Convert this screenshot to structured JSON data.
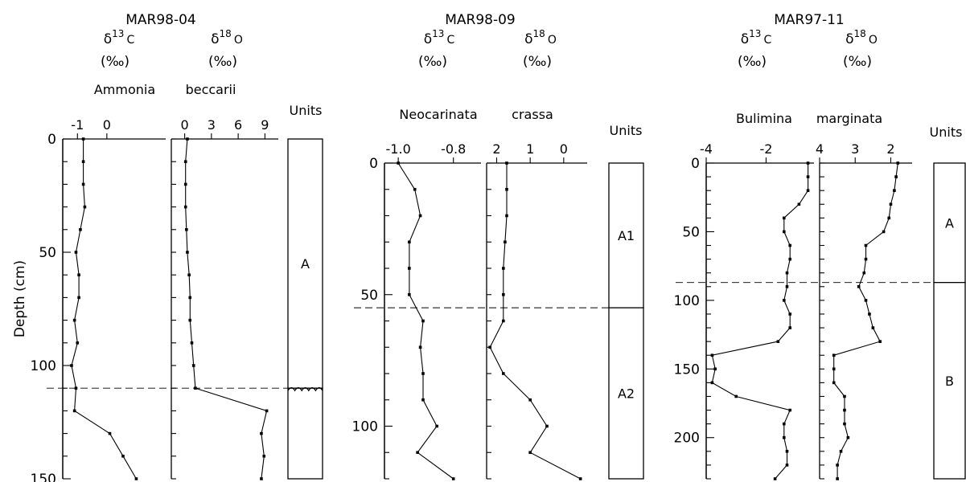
{
  "chart_data": [
    {
      "type": "line",
      "title": "MAR98-04",
      "ylabel": "Depth (cm)",
      "ylim": [
        0,
        150
      ],
      "yticks": [
        0,
        50,
        100,
        150
      ],
      "panels": [
        {
          "header_symbol": "δ",
          "header_sup": "13",
          "header_element": "C",
          "header_unit": "(‰)",
          "xlim": [
            -1.5,
            2.0
          ],
          "xticks": [
            -1,
            0
          ],
          "xtick_labels": [
            "-1",
            "0"
          ],
          "points": [
            [
              -0.8,
              0
            ],
            [
              -0.8,
              10
            ],
            [
              -0.8,
              20
            ],
            [
              -0.75,
              30
            ],
            [
              -0.9,
              40
            ],
            [
              -1.05,
              50
            ],
            [
              -0.95,
              60
            ],
            [
              -0.95,
              70
            ],
            [
              -1.1,
              80
            ],
            [
              -1.0,
              90
            ],
            [
              -1.2,
              100
            ],
            [
              -1.05,
              110
            ],
            [
              -1.1,
              120
            ],
            [
              0.1,
              130
            ],
            [
              0.55,
              140
            ],
            [
              1.0,
              150
            ]
          ]
        },
        {
          "header_symbol": "δ",
          "header_sup": "18",
          "header_element": "O",
          "header_unit": "(‰)",
          "xlim": [
            -1.5,
            10.5
          ],
          "xticks": [
            0,
            3,
            6,
            9
          ],
          "xtick_labels": [
            "0",
            "3",
            "6",
            "9"
          ],
          "points": [
            [
              0.3,
              0
            ],
            [
              0.1,
              10
            ],
            [
              0.1,
              20
            ],
            [
              0.1,
              30
            ],
            [
              0.2,
              40
            ],
            [
              0.3,
              50
            ],
            [
              0.5,
              60
            ],
            [
              0.6,
              70
            ],
            [
              0.6,
              80
            ],
            [
              0.8,
              90
            ],
            [
              1.0,
              100
            ],
            [
              1.2,
              110
            ],
            [
              9.2,
              120
            ],
            [
              8.6,
              130
            ],
            [
              8.9,
              140
            ],
            [
              8.6,
              150
            ]
          ]
        }
      ],
      "species": [
        "Ammonia",
        "beccarii"
      ],
      "units_label": "Units",
      "units": [
        {
          "label": "A",
          "from": 0,
          "to": 110,
          "pattern": "none"
        },
        {
          "label": "",
          "from": 110,
          "to": 150,
          "pattern": "hatched"
        }
      ],
      "boundary_depths": [
        110
      ]
    },
    {
      "type": "line",
      "title": "MAR98-09",
      "ylabel": "",
      "ylim": [
        0,
        120
      ],
      "yticks": [
        0,
        50,
        100
      ],
      "panels": [
        {
          "header_symbol": "δ",
          "header_sup": "13",
          "header_element": "C",
          "header_unit": "(‰)",
          "xlim": [
            -1.05,
            -0.7
          ],
          "xticks": [
            -1.0,
            -0.8
          ],
          "xtick_labels": [
            "-1.0",
            "-0.8"
          ],
          "points": [
            [
              -1.0,
              0
            ],
            [
              -0.94,
              10
            ],
            [
              -0.92,
              20
            ],
            [
              -0.96,
              30
            ],
            [
              -0.96,
              40
            ],
            [
              -0.96,
              50
            ],
            [
              -0.91,
              60
            ],
            [
              -0.92,
              70
            ],
            [
              -0.91,
              80
            ],
            [
              -0.91,
              90
            ],
            [
              -0.86,
              100
            ],
            [
              -0.93,
              110
            ],
            [
              -0.8,
              120
            ]
          ]
        },
        {
          "header_symbol": "δ",
          "header_sup": "18",
          "header_element": "O",
          "header_unit": "(‰)",
          "xlim": [
            2.3,
            -0.7
          ],
          "xticks": [
            2,
            1,
            0
          ],
          "xtick_labels": [
            "2",
            "1",
            "0"
          ],
          "points": [
            [
              1.7,
              0
            ],
            [
              1.7,
              10
            ],
            [
              1.7,
              20
            ],
            [
              1.75,
              30
            ],
            [
              1.8,
              40
            ],
            [
              1.8,
              50
            ],
            [
              1.8,
              60
            ],
            [
              2.2,
              70
            ],
            [
              1.8,
              80
            ],
            [
              1.0,
              90
            ],
            [
              0.5,
              100
            ],
            [
              1.0,
              110
            ],
            [
              -0.5,
              120
            ]
          ]
        }
      ],
      "species": [
        "Neocarinata",
        "crassa"
      ],
      "units_label": "Units",
      "units": [
        {
          "label": "A1",
          "from": 0,
          "to": 55,
          "pattern": "none"
        },
        {
          "label": "A2",
          "from": 55,
          "to": 120,
          "pattern": "none"
        }
      ],
      "boundary_depths": [
        55
      ]
    },
    {
      "type": "line",
      "title": "MAR97-11",
      "ylabel": "",
      "ylim": [
        0,
        230
      ],
      "yticks": [
        0,
        50,
        100,
        150,
        200
      ],
      "panels": [
        {
          "header_symbol": "δ",
          "header_sup": "13",
          "header_element": "C",
          "header_unit": "(‰)",
          "xlim": [
            -4.0,
            -0.4
          ],
          "xticks": [
            -4,
            -2
          ],
          "xtick_labels": [
            "-4",
            "-2"
          ],
          "points": [
            [
              -0.6,
              0
            ],
            [
              -0.6,
              10
            ],
            [
              -0.6,
              20
            ],
            [
              -0.9,
              30
            ],
            [
              -1.4,
              40
            ],
            [
              -1.4,
              50
            ],
            [
              -1.2,
              60
            ],
            [
              -1.2,
              70
            ],
            [
              -1.3,
              80
            ],
            [
              -1.3,
              90
            ],
            [
              -1.4,
              100
            ],
            [
              -1.2,
              110
            ],
            [
              -1.2,
              120
            ],
            [
              -1.6,
              130
            ],
            [
              -3.8,
              140
            ],
            [
              -3.7,
              150
            ],
            [
              -3.8,
              160
            ],
            [
              -3.0,
              170
            ],
            [
              -1.2,
              180
            ],
            [
              -1.4,
              190
            ],
            [
              -1.4,
              200
            ],
            [
              -1.3,
              210
            ],
            [
              -1.3,
              220
            ],
            [
              -1.7,
              230
            ]
          ]
        },
        {
          "header_symbol": "δ",
          "header_sup": "18",
          "header_element": "O",
          "header_unit": "(‰)",
          "xlim": [
            4.0,
            1.4
          ],
          "xticks": [
            4,
            3,
            2
          ],
          "xtick_labels": [
            "4",
            "3",
            "2"
          ],
          "points": [
            [
              1.8,
              0
            ],
            [
              1.85,
              10
            ],
            [
              1.9,
              20
            ],
            [
              2.0,
              30
            ],
            [
              2.05,
              40
            ],
            [
              2.2,
              50
            ],
            [
              2.7,
              60
            ],
            [
              2.7,
              70
            ],
            [
              2.75,
              80
            ],
            [
              2.9,
              90
            ],
            [
              2.7,
              100
            ],
            [
              2.6,
              110
            ],
            [
              2.5,
              120
            ],
            [
              2.3,
              130
            ],
            [
              3.6,
              140
            ],
            [
              3.6,
              150
            ],
            [
              3.6,
              160
            ],
            [
              3.3,
              170
            ],
            [
              3.3,
              180
            ],
            [
              3.3,
              190
            ],
            [
              3.2,
              200
            ],
            [
              3.4,
              210
            ],
            [
              3.5,
              220
            ],
            [
              3.5,
              230
            ]
          ]
        }
      ],
      "species": [
        "Bulimina",
        "marginata"
      ],
      "units_label": "Units",
      "units": [
        {
          "label": "A",
          "from": 0,
          "to": 87,
          "pattern": "none"
        },
        {
          "label": "B",
          "from": 87,
          "to": 230,
          "pattern": "none"
        }
      ],
      "boundary_depths": [
        87
      ]
    }
  ]
}
